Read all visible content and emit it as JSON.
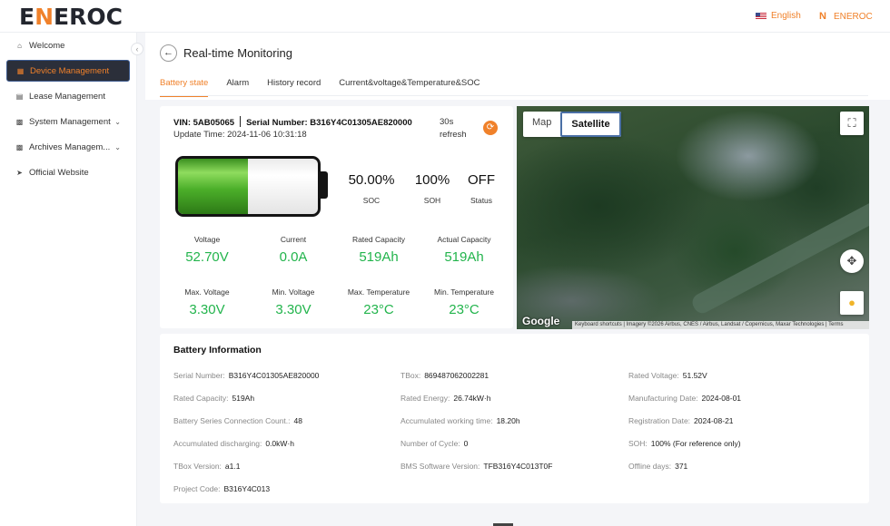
{
  "header": {
    "logo_prefix": "E",
    "logo_accent": "N",
    "logo_suffix": "EROC",
    "language": "English",
    "brand_name": "ENEROC",
    "brand_icon": "N"
  },
  "sidebar": {
    "items": [
      {
        "label": "Welcome",
        "icon": "home-icon"
      },
      {
        "label": "Device Management",
        "icon": "device-icon"
      },
      {
        "label": "Lease Management",
        "icon": "lease-icon"
      },
      {
        "label": "System Management",
        "icon": "system-icon"
      },
      {
        "label": "Archives Managem...",
        "icon": "archive-icon"
      },
      {
        "label": "Official Website",
        "icon": "send-icon"
      }
    ]
  },
  "page": {
    "title": "Real-time Monitoring",
    "tabs": [
      "Battery state",
      "Alarm",
      "History record",
      "Current&voltage&Temperature&SOC"
    ],
    "active_tab": "Battery state"
  },
  "battery_state": {
    "vin_label": "VIN: 5AB05065",
    "serial_label": "Serial Number: B316Y4C01305AE820000",
    "update_time": "Update Time:   2024-11-06 10:31:18",
    "refresh_line1": "30s",
    "refresh_line2": "refresh",
    "soc_fraction": 0.5,
    "soc": "50.00%",
    "soc_label": "SOC",
    "soh": "100%",
    "soh_label": "SOH",
    "status": "OFF",
    "status_label": "Status",
    "metrics": [
      {
        "label": "Voltage",
        "value": "52.70V"
      },
      {
        "label": "Current",
        "value": "0.0A"
      },
      {
        "label": "Rated Capacity",
        "value": "519Ah"
      },
      {
        "label": "Actual Capacity",
        "value": "519Ah"
      },
      {
        "label": "Max. Voltage",
        "value": "3.30V"
      },
      {
        "label": "Min. Voltage",
        "value": "3.30V"
      },
      {
        "label": "Max. Temperature",
        "value": "23°C"
      },
      {
        "label": "Min. Temperature",
        "value": "23°C"
      }
    ]
  },
  "map": {
    "map_label": "Map",
    "satellite_label": "Satellite",
    "google_label": "Google",
    "attribution": "Keyboard shortcuts   |   Imagery ©2026 Airbus, CNES / Airbus, Landsat / Copernicus, Maxar Technologies   |   Terms"
  },
  "battery_info": {
    "title": "Battery Information",
    "rows": [
      [
        {
          "k": "Serial Number:",
          "v": "B316Y4C01305AE820000"
        },
        {
          "k": "TBox:",
          "v": "869487062002281"
        },
        {
          "k": "Rated Voltage:",
          "v": "51.52V"
        }
      ],
      [
        {
          "k": "Rated Capacity:",
          "v": "519Ah"
        },
        {
          "k": "Rated Energy:",
          "v": "26.74kW·h"
        },
        {
          "k": "Manufacturing Date:",
          "v": "2024-08-01"
        }
      ],
      [
        {
          "k": "Battery Series Connection Count.:",
          "v": "48"
        },
        {
          "k": "Accumulated working time:",
          "v": "18.20h"
        },
        {
          "k": "Registration Date:",
          "v": "2024-08-21"
        }
      ],
      [
        {
          "k": "Accumulated discharging:",
          "v": "0.0kW·h"
        },
        {
          "k": "Number of Cycle:",
          "v": "0"
        },
        {
          "k": "SOH:",
          "v": "100% (For reference only)"
        }
      ],
      [
        {
          "k": "TBox Version:",
          "v": "a1.1"
        },
        {
          "k": "BMS Software Version:",
          "v": "TFB316Y4C013T0F"
        },
        {
          "k": "Offline days:",
          "v": "371"
        }
      ],
      [
        {
          "k": "Project Code:",
          "v": "B316Y4C013"
        }
      ]
    ]
  },
  "colors": {
    "accent": "#f0812a",
    "value_green": "#22b44c",
    "sidebar_active_bg": "#2b2f3a"
  }
}
